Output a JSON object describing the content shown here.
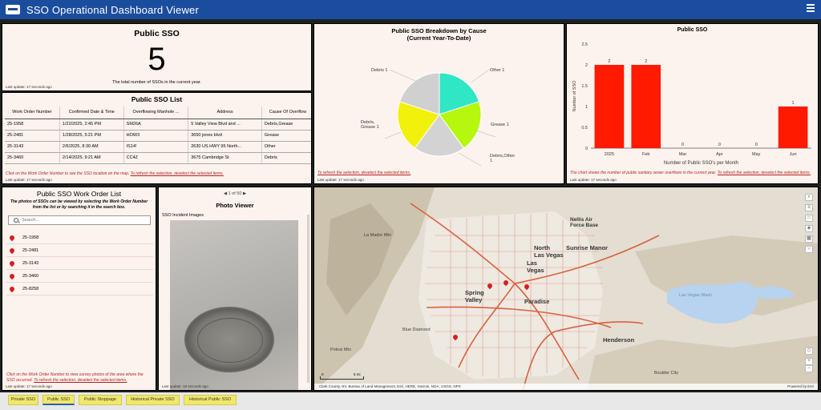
{
  "app": {
    "title": "SSO Operational Dashboard Viewer"
  },
  "counter": {
    "title": "Public SSO",
    "value": "5",
    "description": "The total number of SSOs in the current year.",
    "last_update": "Last update: 17 seconds ago"
  },
  "sso_list": {
    "title": "Public SSO List",
    "columns": [
      "Work Order Number",
      "Confirmed Date & Time",
      "Overflowing Manhole ...",
      "Address",
      "Cause Of Overflow"
    ],
    "rows": [
      [
        "25-1958",
        "1/22/2025, 2:45 PM",
        "SM26A",
        "5 Valley View Blvd and ...",
        "Debris,Grease"
      ],
      [
        "25-2481",
        "1/28/2025, 5:21 PM",
        "HOW3",
        "3650 jones blvd",
        "Grease"
      ],
      [
        "25-3143",
        "2/6/2025, 8:30 AM",
        "IS14!",
        "2630 US HWY 95 North...",
        "Other"
      ],
      [
        "25-3460",
        "2/14/2025, 9:21 AM",
        "CC4Z",
        "3675 Cambridge St",
        "Debris"
      ]
    ],
    "note_prefix": "Click on the Work Order Number to see the SSO location on the map.",
    "note_link": "To refresh the selection, deselect the selected items.",
    "last_update": "Last update: 17 seconds ago"
  },
  "pie": {
    "title_line1": "Public SSO Breakdown by Cause",
    "title_line2": "(Current Year-To-Date)",
    "labels": {
      "debris": "Debris 1",
      "other": "Other 1",
      "debris_grease": "Debris,\nGrease 1",
      "grease": "Grease 1",
      "debris_other": "Debris,Other\n1"
    },
    "note": "To refresh the selection, deselect the selected items.",
    "last_update": "Last update: 17 seconds ago"
  },
  "chart_data": {
    "type": "bar",
    "title": "Public SSO",
    "categories": [
      "2025",
      "Feb",
      "Mar",
      "Apr",
      "May",
      "Jun"
    ],
    "values": [
      2,
      2,
      0,
      0,
      0,
      1
    ],
    "xlabel": "Number of Public SSO's per Month",
    "ylabel": "Number of SSO",
    "ylim": [
      0,
      2.5
    ],
    "yticks": [
      "0",
      "0.5",
      "1",
      "1.5",
      "2",
      "2.5"
    ],
    "bar_color": "#ff1a00",
    "grid": false,
    "note_prefix": "The chart shows the number of public sanitary sewer overflows in the current year.",
    "note_link": "To refresh the selection, deselect the selected items.",
    "last_update": "Last update: 17 seconds ago"
  },
  "work_orders": {
    "title": "Public SSO Work Order List",
    "description": "The photos of SSOs can be viewed by selecting the Work Order Number from the list or by searching it in the search box.",
    "search_placeholder": "Search...",
    "items": [
      "25-1958",
      "25-2481",
      "25-3143",
      "25-3460",
      "25-8258"
    ],
    "note_prefix": "Click on the Work Order Number to view  survey photos of the area where the SSO occurred.",
    "note_link": "To refresh the selection, deselect the selected items.",
    "last_update": "Last update: 17 seconds ago"
  },
  "photo_viewer": {
    "pager": "1 of 50",
    "title": "Photo Viewer",
    "label": "SSO Incident Images",
    "last_update": "Last update: 18 seconds ago"
  },
  "map": {
    "labels": {
      "nellis": "Nellis Air\nForce Base",
      "north_lv": "North\nLas Vegas",
      "sunrise": "Sunrise Manor",
      "las_vegas": "Las\nVegas",
      "spring_valley": "Spring\nValley",
      "paradise": "Paradise",
      "blue_diamond": "Blue Diamond",
      "henderson": "Henderson",
      "boulder_city": "Boulder City",
      "lake_mead": "Las Vegas Wash",
      "la_madre": "La Madre Mtn",
      "potosi": "Potosi Mtn"
    },
    "scale": "5 mi",
    "scale_zero": "0",
    "attribution": "Clark County, NV, Bureau of Land Management, Esri, HERE, Garmin, NGA, USGS, NPS",
    "powered": "Powered by Esri"
  },
  "tabs": [
    "Private SSO",
    "Public SSO",
    "Public Stoppage",
    "Historical Private SSO",
    "Historical Public SSO"
  ]
}
